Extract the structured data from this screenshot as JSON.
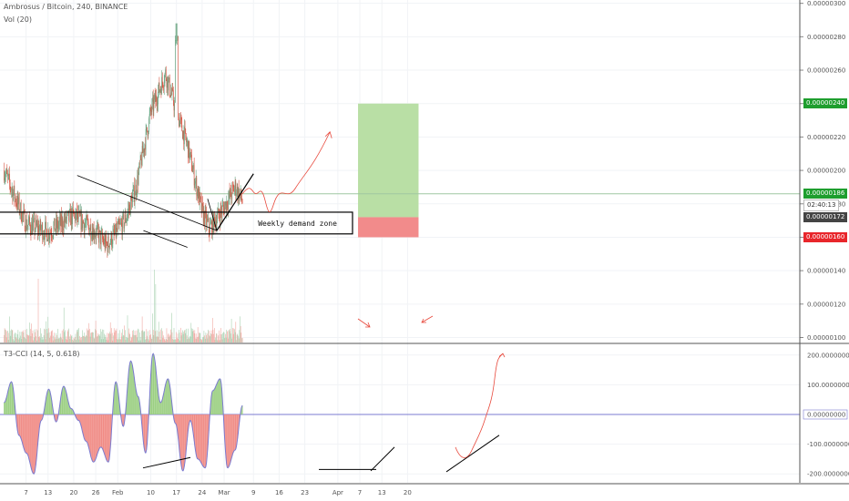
{
  "header": {
    "symbol_line": "Ambrosus / Bitcoin, 240, BINANCE",
    "vol_label": "Vol (20)",
    "indicator_label": "T3-CCI (14, 5, 0.618)"
  },
  "price_tags": {
    "target": "0.00000240",
    "last": "0.00000186",
    "countdown": "02:40:13",
    "entry": "0.00000172",
    "stop": "0.00000160"
  },
  "annotations": {
    "zone_label": "Weekly demand zone"
  },
  "colors": {
    "up": "#6ba583",
    "down": "#d75442",
    "cci_line": "#7b7bd0",
    "target_zone": "#b9dfa5",
    "stop_zone": "#f28b8b",
    "arrow": "#e8493c",
    "tag_green": "#1e9e2e",
    "tag_red": "#e8262b",
    "tag_dark": "#444444"
  },
  "chart_data": [
    {
      "type": "candlestick",
      "title": "Ambrosus / Bitcoin, 240, BINANCE",
      "ylim": [
        9.7e-07,
        3.02e-06
      ],
      "y_ticks": [
        "0.00000300",
        "0.00000280",
        "0.00000260",
        "0.00000240",
        "0.00000220",
        "0.00000200",
        "0.00000180",
        "0.00000160",
        "0.00000140",
        "0.00000120",
        "0.00000100"
      ],
      "x_ticks": [
        "7",
        "13",
        "20",
        "26",
        "Feb",
        "10",
        "17",
        "24",
        "Mar",
        "9",
        "16",
        "23",
        "Apr",
        "7",
        "13",
        "20"
      ],
      "price_path": [
        {
          "date": "Jan 1",
          "price": 2e-06
        },
        {
          "date": "Jan 7",
          "price": 1.68e-06
        },
        {
          "date": "Jan 13",
          "price": 1.63e-06
        },
        {
          "date": "Jan 20",
          "price": 1.73e-06
        },
        {
          "date": "Jan 26",
          "price": 1.63e-06
        },
        {
          "date": "Jan 29",
          "price": 1.55e-06
        },
        {
          "date": "Feb 3",
          "price": 1.7e-06
        },
        {
          "date": "Feb 6",
          "price": 1.9e-06
        },
        {
          "date": "Feb 10",
          "price": 2.35e-06
        },
        {
          "date": "Feb 14",
          "price": 2.58e-06
        },
        {
          "date": "Feb 17",
          "price": 2.35e-06
        },
        {
          "date": "Feb 20",
          "price": 2.15e-06
        },
        {
          "date": "Feb 24",
          "price": 1.75e-06
        },
        {
          "date": "Feb 26",
          "price": 1.65e-06
        },
        {
          "date": "Mar 1",
          "price": 1.78e-06
        },
        {
          "date": "Mar 4",
          "price": 1.9e-06
        },
        {
          "date": "Mar 6",
          "price": 1.82e-06
        }
      ],
      "key_levels": {
        "high": 2.88e-06,
        "demand_zone": [
          1.62e-06,
          1.75e-06
        ]
      },
      "trade_setup": {
        "entry": 1.72e-06,
        "target": 2.4e-06,
        "stop": 1.6e-06,
        "last": 1.86e-06
      }
    },
    {
      "type": "bar",
      "title": "Vol (20)",
      "ylim": [
        0,
        1
      ]
    },
    {
      "type": "line",
      "title": "T3-CCI (14, 5, 0.618)",
      "ylim": [
        -230,
        230
      ],
      "y_ticks": [
        "200.00000000",
        "100.00000000",
        "0.00000000",
        "-100.00000000",
        "-200.00000000"
      ],
      "x_ticks": [
        "7",
        "13",
        "20",
        "26",
        "Feb",
        "10",
        "17",
        "24",
        "Mar",
        "9",
        "16",
        "23",
        "Apr",
        "7",
        "13",
        "20"
      ],
      "values": [
        40,
        110,
        -70,
        -130,
        -200,
        -20,
        85,
        -25,
        95,
        20,
        -20,
        -90,
        -160,
        -110,
        -160,
        110,
        -40,
        180,
        60,
        -130,
        205,
        40,
        120,
        -30,
        -190,
        -20,
        -150,
        -180,
        80,
        120,
        -180,
        -120,
        30
      ]
    }
  ]
}
